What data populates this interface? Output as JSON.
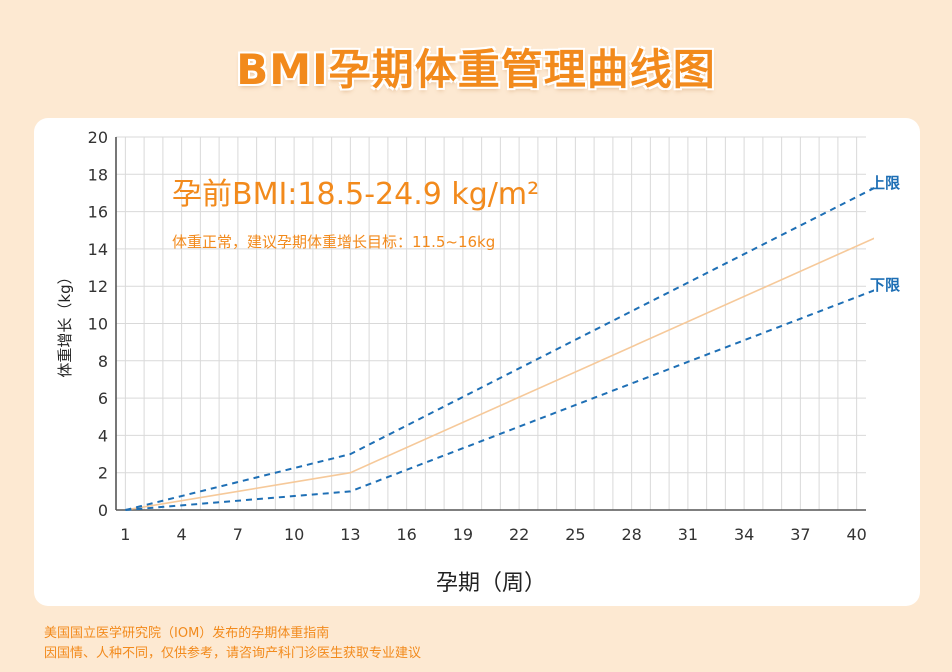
{
  "title": "BMI孕期体重管理曲线图",
  "notes": {
    "line1": "美国国立医学研究院（IOM）发布的孕期体重指南",
    "line2": "因国情、人种不同，仅供参考，请咨询产科门诊医生获取专业建议"
  },
  "colors": {
    "accent": "#f28a1c",
    "dashed": "#1e6fb5",
    "median": "#f6c99a",
    "grid": "#d9d9d9",
    "axis": "#555555"
  },
  "chart_data": {
    "type": "line",
    "xlabel": "孕期（周）",
    "ylabel": "体重增长（kg）",
    "xlim": [
      0.5,
      40.5
    ],
    "ylim": [
      0,
      20
    ],
    "x_ticks": [
      1,
      4,
      7,
      10,
      13,
      16,
      19,
      22,
      25,
      28,
      31,
      34,
      37,
      40
    ],
    "y_ticks": [
      0,
      2,
      4,
      6,
      8,
      10,
      12,
      14,
      16,
      18,
      20
    ],
    "grid": true,
    "annotations": {
      "heading": "孕前BMI:18.5-24.9 kg/m²",
      "subheading": "体重正常，建议孕期体重增长目标：11.5~16kg"
    },
    "series": [
      {
        "name": "上限",
        "style": "dashed",
        "x": [
          1,
          13,
          41
        ],
        "y": [
          0,
          3,
          17.3
        ]
      },
      {
        "style": "solid",
        "x": [
          1,
          13,
          41
        ],
        "y": [
          0,
          2,
          14.6
        ]
      },
      {
        "name": "下限",
        "style": "dashed",
        "x": [
          1,
          13,
          41
        ],
        "y": [
          0,
          1,
          11.8
        ]
      }
    ]
  }
}
